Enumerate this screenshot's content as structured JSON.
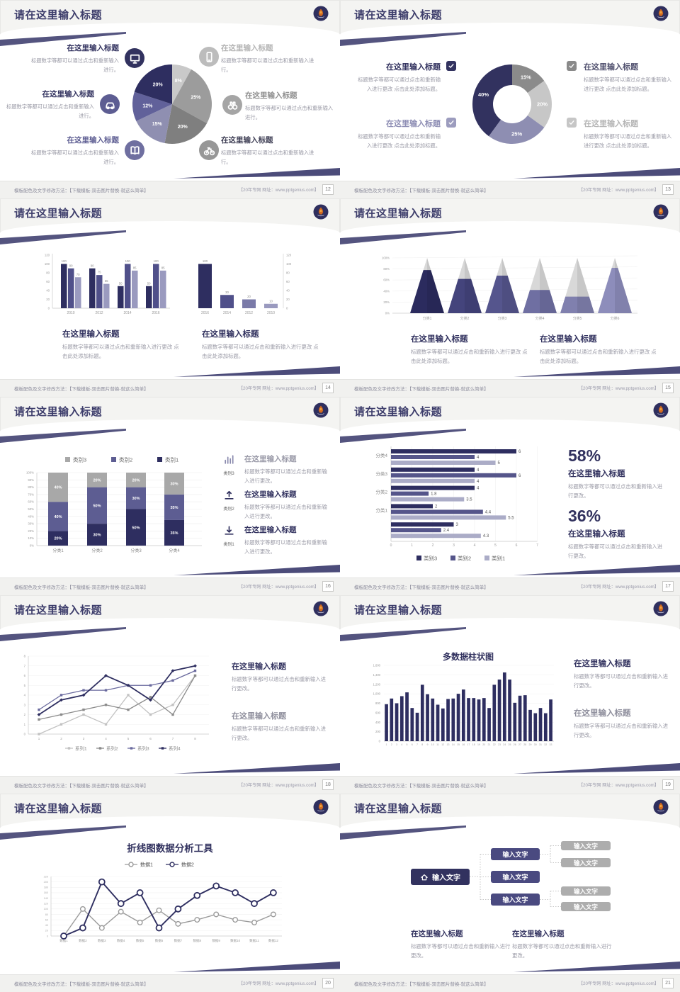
{
  "page": {
    "background": "#e9e9e7",
    "accent": "#54547f",
    "navy": "#2e2e60",
    "title_color": "#3d3d6b"
  },
  "common": {
    "slide_title": "请在这里输入标题",
    "block_heading": "在这里输入标题",
    "logo": "school-emblem-icon"
  },
  "footer": {
    "left": "模板配色及文字修改方法：【下载模板-双击图片替换-就这么简单】",
    "right": "【20年专网 网址：www.pptgenius.com】"
  },
  "slides": [
    {
      "type": "pie_callouts",
      "page_no": "12",
      "chart": 0,
      "callouts": [
        {
          "side": "left",
          "icon": "monitor",
          "icon_color": "#32325f",
          "heading": "在这里输入标题",
          "heading_color": "#32325f",
          "body": "标题数字等都可以通过点击和重新输入进行。"
        },
        {
          "side": "left",
          "icon": "car",
          "icon_color": "#5d5d92",
          "heading": "在这里输入标题",
          "heading_color": "#32325f",
          "body": "标题数字等都可以通过点击和重新输入进行。"
        },
        {
          "side": "left",
          "icon": "book",
          "icon_color": "#6f6fa0",
          "heading": "在这里输入标题",
          "heading_color": "#5d5d92",
          "body": "标题数字等都可以通过点击和重新输入进行。"
        },
        {
          "side": "right",
          "icon": "phone",
          "icon_color": "#bcbcbc",
          "heading": "在这里输入标题",
          "heading_color": "#b5b5b5",
          "body": "标题数字等都可以通过点击和重新输入进行。"
        },
        {
          "side": "right",
          "icon": "binoculars",
          "icon_color": "#a5a5a5",
          "heading": "在这里输入标题",
          "heading_color": "#8f8f8f",
          "body": "标题数字等都可以通过点击和重新输入进行。"
        },
        {
          "side": "right",
          "icon": "bicycle",
          "icon_color": "#979797",
          "heading": "在这里输入标题",
          "heading_color": "#3f3f55",
          "body": "标题数字等都可以通过点击和重新输入进行。"
        }
      ]
    },
    {
      "type": "donut_checklist",
      "page_no": "13",
      "chart": 1,
      "items": [
        {
          "side": "left",
          "check_color": "#32325f",
          "heading": "在这里输入标题",
          "heading_color": "#32325f",
          "body": "标题数字等都可以通过点击和重新输入进行更改 点击此处添加标题。"
        },
        {
          "side": "left",
          "check_color": "#9c9cbe",
          "heading": "在这里输入标题",
          "heading_color": "#8e8eb4",
          "body": "标题数字等都可以通过点击和重新输入进行更改 点击此处添加标题。"
        },
        {
          "side": "right",
          "check_color": "#8a8a8a",
          "heading": "在这里输入标题",
          "heading_color": "#50506e",
          "body": "标题数字等都可以通过点击和重新输入进行更改 点击此处添加标题。"
        },
        {
          "side": "right",
          "check_color": "#c6c6c6",
          "heading": "在这里输入标题",
          "heading_color": "#b5b5b5",
          "body": "标题数字等都可以通过点击和重新输入进行更改 点击此处添加标题。"
        }
      ]
    },
    {
      "type": "dual_bars",
      "page_no": "14",
      "charts": [
        2,
        3
      ],
      "blocks": [
        {
          "heading": "在这里输入标题",
          "heading_color": "#32325f",
          "body": "标题数字等都可以通过点击和重新输入进行更改 点击此处添加标题。"
        },
        {
          "heading": "在这里输入标题",
          "heading_color": "#32325f",
          "body": "标题数字等都可以通过点击和重新输入进行更改 点击此处添加标题。"
        }
      ]
    },
    {
      "type": "cones",
      "page_no": "15",
      "chart": 4,
      "blocks": [
        {
          "heading": "在这里输入标题",
          "heading_color": "#32325f",
          "body": "标题数字等都可以通过点击和重新输入进行更改 点击此处添加标题。"
        },
        {
          "heading": "在这里输入标题",
          "heading_color": "#32325f",
          "body": "标题数字等都可以通过点击和重新输入进行更改 点击此处添加标题。"
        }
      ]
    },
    {
      "type": "stacked",
      "page_no": "16",
      "chart": 5,
      "callouts": [
        {
          "icon": "chart",
          "icon_color": "#8a8aae",
          "label": "类别3",
          "heading": "在这里输入标题",
          "heading_color": "#9a9aa8",
          "body": "标题数字等都可以通过点击和重新输入进行更改。"
        },
        {
          "icon": "trayup",
          "icon_color": "#32325f",
          "label": "类别2",
          "heading": "在这里输入标题",
          "heading_color": "#32325f",
          "body": "标题数字等都可以通过点击和重新输入进行更改。"
        },
        {
          "icon": "traydown",
          "icon_color": "#32325f",
          "label": "类别1",
          "heading": "在这里输入标题",
          "heading_color": "#32325f",
          "body": "标题数字等都可以通过点击和重新输入进行更改。"
        }
      ]
    },
    {
      "type": "hbars",
      "page_no": "17",
      "chart": 6,
      "stats": [
        {
          "value": "58%",
          "heading": "在这里输入标题",
          "heading_color": "#32325f",
          "body": "标题数字等都可以通过点击和重新输入进行更改。"
        },
        {
          "value": "36%",
          "heading": "在这里输入标题",
          "heading_color": "#32325f",
          "body": "标题数字等都可以通过点击和重新输入进行更改。"
        }
      ]
    },
    {
      "type": "line_chart",
      "page_no": "18",
      "chart": 7,
      "blocks": [
        {
          "heading": "在这里输入标题",
          "heading_color": "#32325f",
          "body": "标题数字等都可以通过点击和重新输入进行更改。"
        },
        {
          "heading": "在这里输入标题",
          "heading_color": "#8f8f9d",
          "body": "标题数字等都可以通过点击和重新输入进行更改。"
        }
      ]
    },
    {
      "type": "multibar",
      "page_no": "19",
      "chart": 8,
      "blocks": [
        {
          "heading": "在这里输入标题",
          "heading_color": "#32325f",
          "body": "标题数字等都可以通过点击和重新输入进行更改。"
        },
        {
          "heading": "在这里输入标题",
          "heading_color": "#8f8f9d",
          "body": "标题数字等都可以通过点击和重新输入进行更改。"
        }
      ]
    },
    {
      "type": "line2",
      "page_no": "20",
      "chart": 9
    },
    {
      "type": "tree",
      "page_no": "21",
      "root": "输入文字",
      "mids": [
        "输入文字",
        "输入文字",
        "输入文字"
      ],
      "leaves": [
        "输入文字",
        "输入文字",
        "输入文字",
        "输入文字"
      ],
      "blocks": [
        {
          "heading": "在这里输入标题",
          "heading_color": "#32325f",
          "body": "标题数字等都可以通过点击和重新输入进行更改。"
        },
        {
          "heading": "在这里输入标题",
          "heading_color": "#32325f",
          "body": "标题数字等都可以通过点击和重新输入进行更改。"
        }
      ]
    }
  ],
  "chart_data": [
    {
      "type": "pie",
      "values": [
        8,
        25,
        20,
        15,
        12,
        20
      ],
      "labels": [
        "8%",
        "25%",
        "20%",
        "15%",
        "12%",
        "20%"
      ],
      "colors": [
        "#c9c9c9",
        "#9c9c9c",
        "#7f7f7f",
        "#8f8fb1",
        "#61619a",
        "#2e2e60"
      ]
    },
    {
      "type": "pie",
      "variant": "donut",
      "values": [
        15,
        20,
        25,
        40
      ],
      "labels": [
        "15%",
        "20%",
        "25%",
        "40%"
      ],
      "colors": [
        "#8b8b8b",
        "#c7c7c7",
        "#8e8eb2",
        "#32325f"
      ]
    },
    {
      "type": "bar",
      "variant": "grouped",
      "categories": [
        "2010",
        "2012",
        "2014",
        "2016"
      ],
      "series": [
        {
          "name": "系列1",
          "color": "#2e2e60",
          "values": [
            100,
            90,
            50,
            50
          ]
        },
        {
          "name": "系列2",
          "color": "#50508a",
          "values": [
            90,
            75,
            100,
            100
          ]
        },
        {
          "name": "系列3",
          "color": "#9a9abf",
          "values": [
            70,
            55,
            85,
            85
          ]
        }
      ],
      "ylim": [
        0,
        120
      ],
      "ystep": 20
    },
    {
      "type": "bar",
      "categories": [
        "2016",
        "2014",
        "2012",
        "2010"
      ],
      "values": [
        100,
        30,
        20,
        10
      ],
      "colors": [
        "#2e2e60",
        "#50508a",
        "#7a7aa8",
        "#9a9abf"
      ],
      "ylim": [
        0,
        120
      ],
      "ystep": 20,
      "axis": "right"
    },
    {
      "type": "bar",
      "variant": "cone3d",
      "categories": [
        "分类1",
        "分类2",
        "分类3",
        "分类4",
        "分类5",
        "分类6"
      ],
      "values": [
        78,
        62,
        68,
        42,
        30,
        82
      ],
      "colors": [
        "#2b2b5e",
        "#44447c",
        "#55558d",
        "#6f6fa2",
        "#8080ae",
        "#8d8dbb"
      ],
      "rest_color": "#d8d8d8",
      "ylim": [
        0,
        100
      ],
      "ystep": 20
    },
    {
      "type": "bar",
      "variant": "stacked",
      "categories": [
        "分类1",
        "分类2",
        "分类3",
        "分类4"
      ],
      "series": [
        {
          "name": "类别1",
          "color": "#2e2e60",
          "values": [
            20,
            30,
            50,
            35
          ]
        },
        {
          "name": "类别2",
          "color": "#5d5d92",
          "values": [
            40,
            50,
            30,
            35
          ]
        },
        {
          "name": "类别3",
          "color": "#a8a8a8",
          "values": [
            40,
            20,
            20,
            30
          ]
        }
      ],
      "legend": [
        "类别3",
        "类别2",
        "类别1"
      ],
      "legend_colors": [
        "#a8a8a8",
        "#5d5d92",
        "#2e2e60"
      ],
      "ylim": [
        0,
        100
      ],
      "ystep": 10
    },
    {
      "type": "bar",
      "variant": "horizontal",
      "categories": [
        "分类4",
        "分类3",
        "分类2",
        "分类1",
        ""
      ],
      "series": [
        {
          "name": "类别3",
          "color": "#2e2e60",
          "values": [
            6,
            4,
            4,
            2,
            3
          ]
        },
        {
          "name": "类别2",
          "color": "#55558a",
          "values": [
            4,
            6,
            1.8,
            4.4,
            2.4
          ]
        },
        {
          "name": "类别1",
          "color": "#abacc7",
          "values": [
            5,
            4,
            3.5,
            5.5,
            4.3
          ]
        }
      ],
      "xlim": [
        0,
        7
      ],
      "xstep": 1,
      "legend": [
        "类别3",
        "类别2",
        "类别1"
      ]
    },
    {
      "type": "line",
      "x_ticks": [
        "1",
        "2",
        "3",
        "4",
        "5",
        "6",
        "7",
        "8"
      ],
      "series": [
        {
          "name": "系列1",
          "color": "#c2c2c2",
          "values": [
            0,
            1,
            2,
            1,
            4,
            2,
            3,
            6
          ]
        },
        {
          "name": "系列2",
          "color": "#8b8b8b",
          "values": [
            1.5,
            2,
            2.5,
            3,
            2.5,
            3.8,
            2,
            6
          ]
        },
        {
          "name": "系列3",
          "color": "#6a6a9e",
          "values": [
            2.5,
            4,
            4.5,
            4.5,
            5,
            5,
            5.5,
            6.5
          ]
        },
        {
          "name": "系列4",
          "color": "#2e2e60",
          "values": [
            2,
            3.5,
            4,
            6,
            5,
            3.5,
            6.5,
            7
          ]
        }
      ],
      "ylim": [
        0,
        8
      ],
      "ystep": 1
    },
    {
      "type": "bar",
      "title": "多数据柱状图",
      "categories": [
        "1",
        "2",
        "3",
        "4",
        "5",
        "6",
        "7",
        "8",
        "9",
        "10",
        "11",
        "12",
        "13",
        "14",
        "15",
        "16",
        "17",
        "18",
        "19",
        "20",
        "21",
        "22",
        "23",
        "24",
        "25",
        "26",
        "27",
        "28",
        "29",
        "30",
        "31",
        "32",
        "33"
      ],
      "values": [
        780,
        900,
        800,
        950,
        1030,
        700,
        600,
        1190,
        990,
        900,
        770,
        690,
        890,
        900,
        1000,
        1090,
        910,
        910,
        880,
        910,
        700,
        1190,
        1300,
        1450,
        1300,
        810,
        960,
        970,
        660,
        590,
        700,
        590,
        880
      ],
      "color": "#2e2e60",
      "ylim": [
        0,
        1600
      ],
      "ystep": 200,
      "ytick_labels": [
        "0",
        "200",
        "400",
        "600",
        "800",
        "1,000",
        "1,200",
        "1,400",
        "1,600"
      ]
    },
    {
      "type": "line",
      "title": "折线图数据分析工具",
      "categories": [
        "数据1",
        "数据2",
        "数据3",
        "数据4",
        "数据5",
        "数据6",
        "数据7",
        "数据8",
        "数据9",
        "数据10",
        "数据11",
        "数据12"
      ],
      "series": [
        {
          "name": "数据1",
          "color": "#9b9b9b",
          "values": [
            0,
            100,
            30,
            90,
            50,
            95,
            45,
            60,
            80,
            60,
            50,
            80
          ]
        },
        {
          "name": "数据2",
          "color": "#2e2e60",
          "values": [
            0,
            30,
            200,
            120,
            160,
            30,
            100,
            150,
            185,
            160,
            120,
            160
          ]
        }
      ],
      "ylim": [
        0,
        220
      ],
      "ystep": 20
    }
  ]
}
